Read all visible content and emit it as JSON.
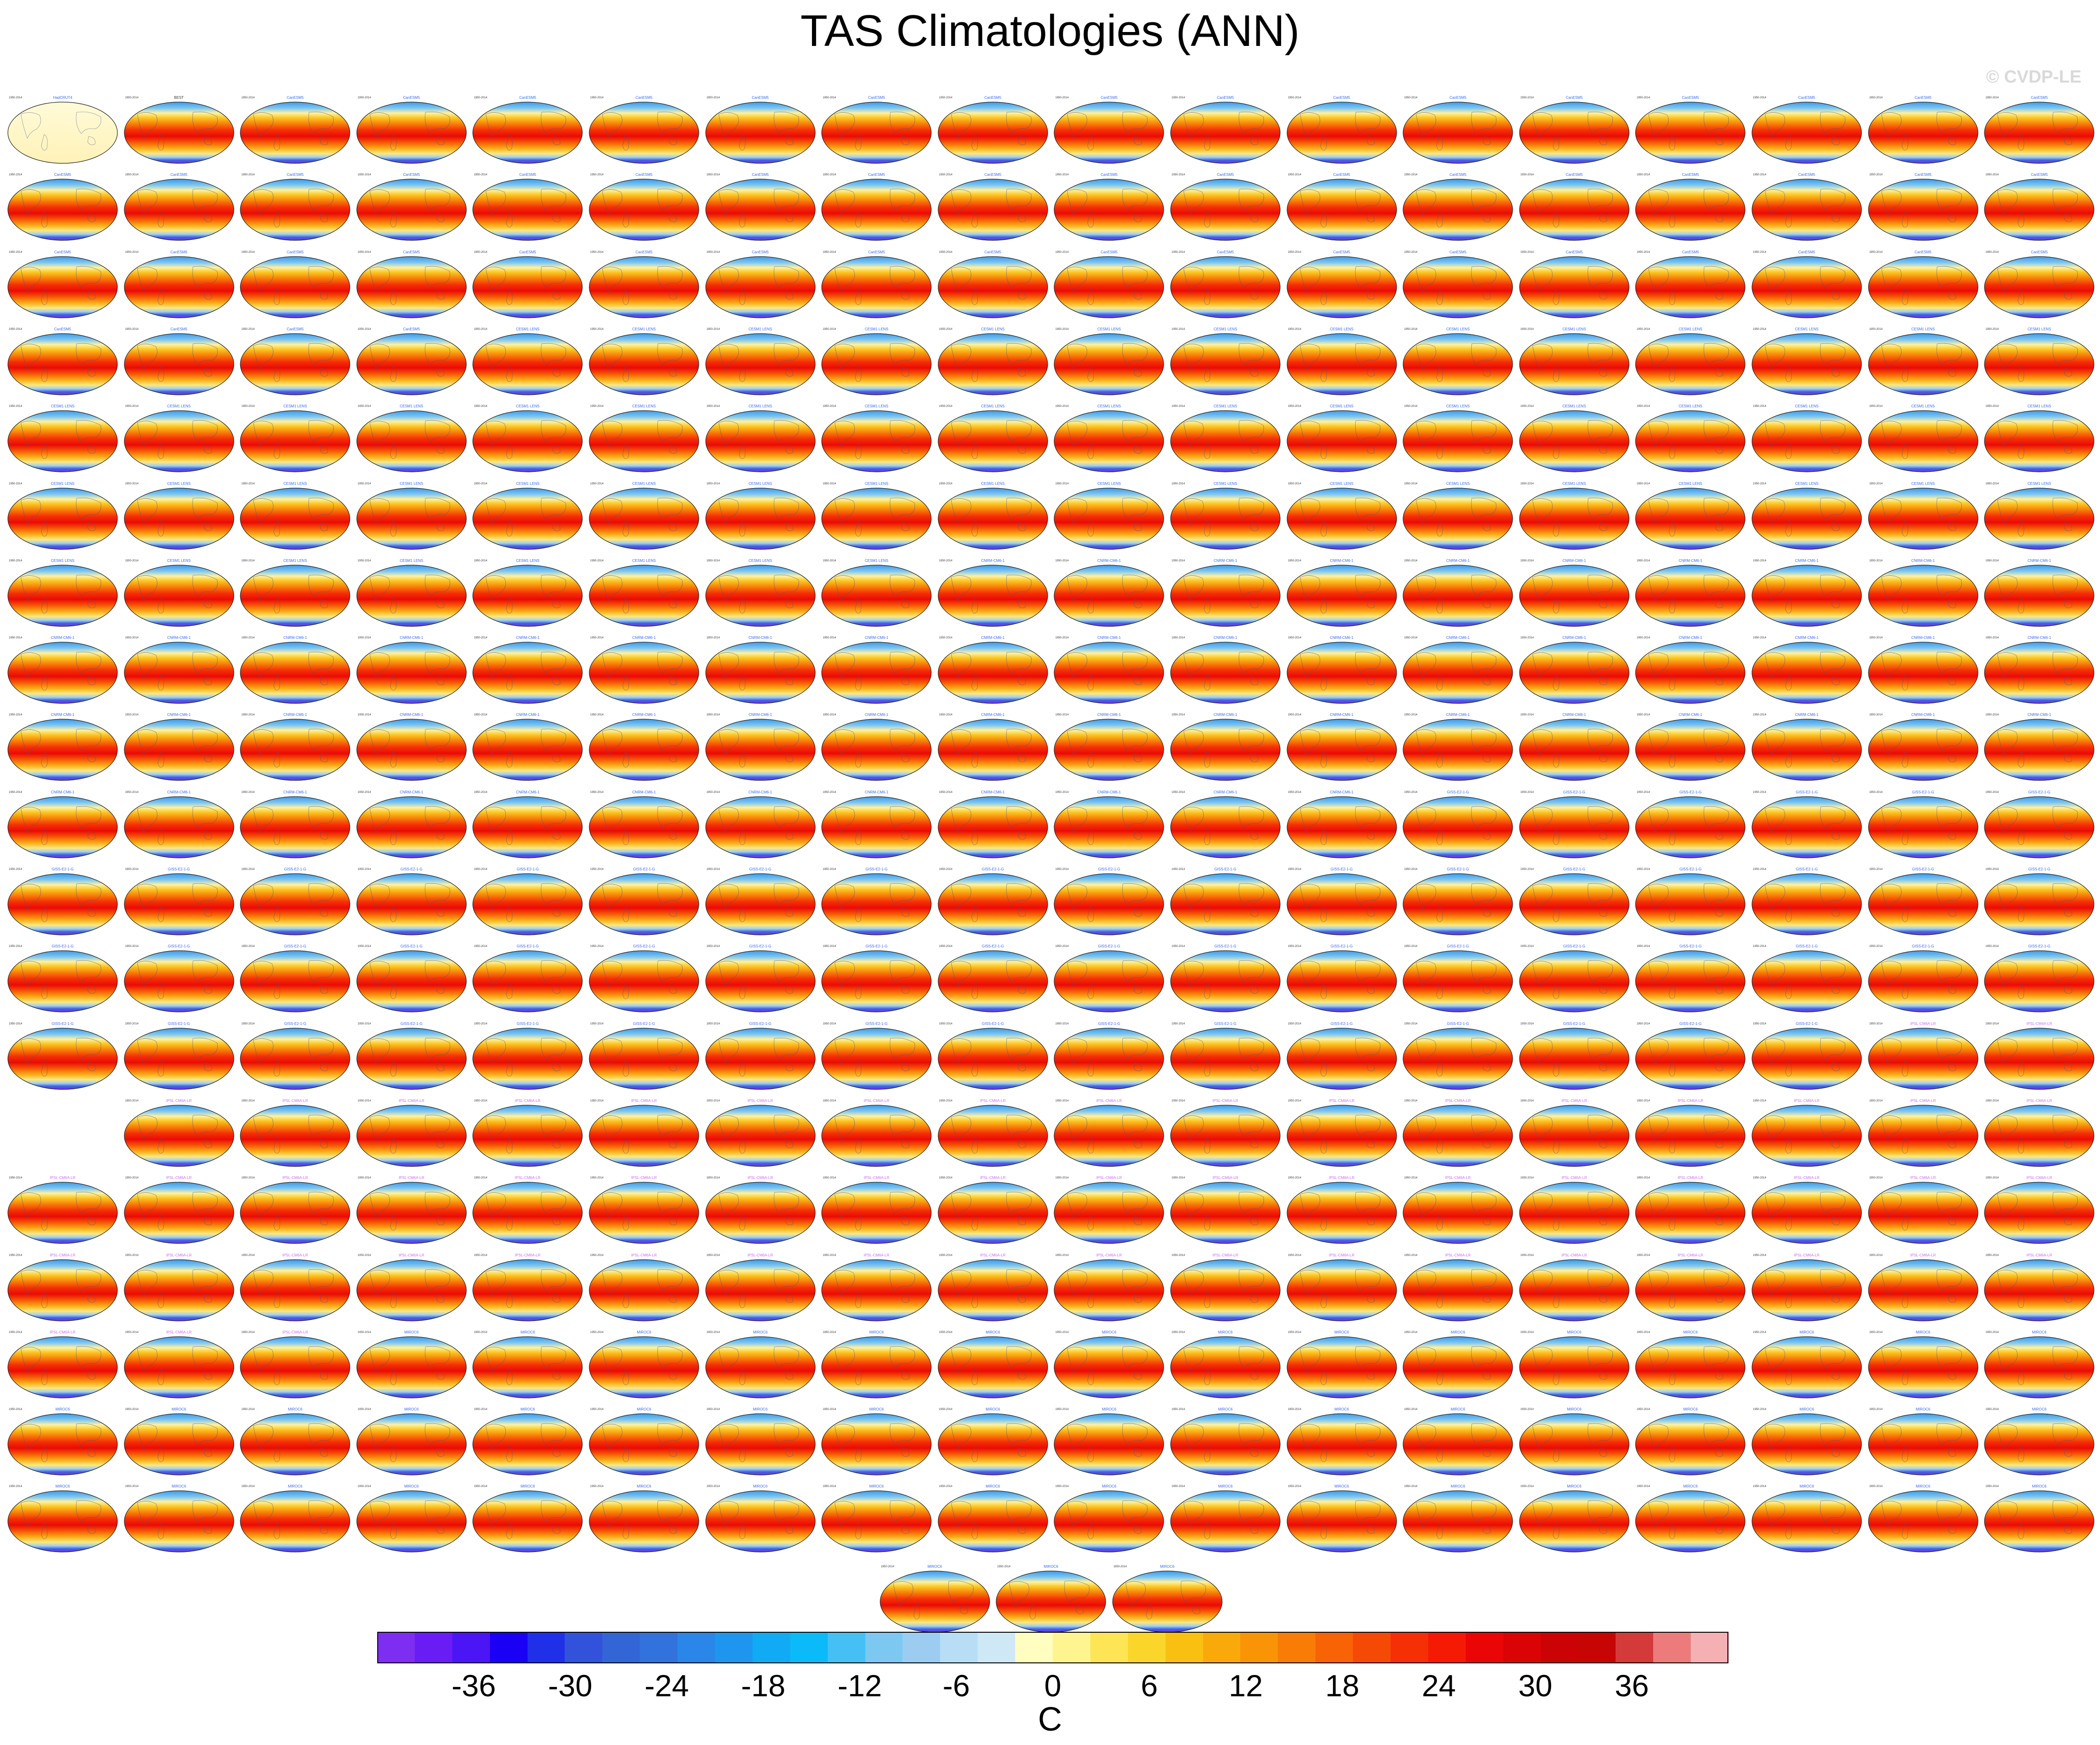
{
  "title": "TAS Climatologies (ANN)",
  "watermark": "© CVDP-LE",
  "chart_data": {
    "type": "heatmap",
    "title": "TAS Climatologies (ANN)",
    "panel_grid": {
      "columns": 18,
      "rows_full": 19,
      "row_14_offset_columns": 1,
      "last_row_panels": 3,
      "total_panels": 344
    },
    "panels": {
      "reference_panel": "HadCRUT4",
      "first_row_second_panel": "BEST",
      "panel_period": "1950-2014",
      "model_groups": [
        "CanESM5",
        "CESM1 LENS",
        "CNRM-CM6-1",
        "GISS-E2-1-G",
        "IPSL-CM6A-LR",
        "MIROC6"
      ]
    },
    "colorbar": {
      "unit": "C",
      "levels": [
        -42,
        -39,
        -36,
        -33,
        -30,
        -27,
        -24,
        -21,
        -18,
        -15,
        -12,
        -9,
        -6,
        -3,
        0,
        3,
        6,
        9,
        12,
        15,
        18,
        21,
        24,
        27,
        30,
        33,
        36,
        39,
        42
      ],
      "tick_labels": [
        "-36",
        "-30",
        "-24",
        "-18",
        "-12",
        "-6",
        "0",
        "6",
        "12",
        "18",
        "24",
        "30",
        "36"
      ],
      "tick_values": [
        -36,
        -30,
        -24,
        -18,
        -12,
        -6,
        0,
        6,
        12,
        18,
        24,
        30,
        36
      ],
      "colors": [
        "#7e2ef0",
        "#6a1cf5",
        "#4b15f5",
        "#1a00f5",
        "#2030e8",
        "#3352db",
        "#3465d6",
        "#3272dd",
        "#2a86e8",
        "#1e96f0",
        "#10aaf5",
        "#0bbaf8",
        "#45c0f5",
        "#7dc8f0",
        "#9ccdf0",
        "#b8def5",
        "#cfe8f5",
        "#fffdc0",
        "#fff590",
        "#fde555",
        "#fbd62a",
        "#f9c012",
        "#f9aa0a",
        "#f99407",
        "#f97c06",
        "#f76305",
        "#f54a06",
        "#f53005",
        "#f51a04",
        "#ea0507",
        "#da0306",
        "#cc0306",
        "#c80505",
        "#d43a3a",
        "#ee7b7b",
        "#f5b0b4"
      ],
      "range": [
        -42,
        42
      ]
    }
  }
}
